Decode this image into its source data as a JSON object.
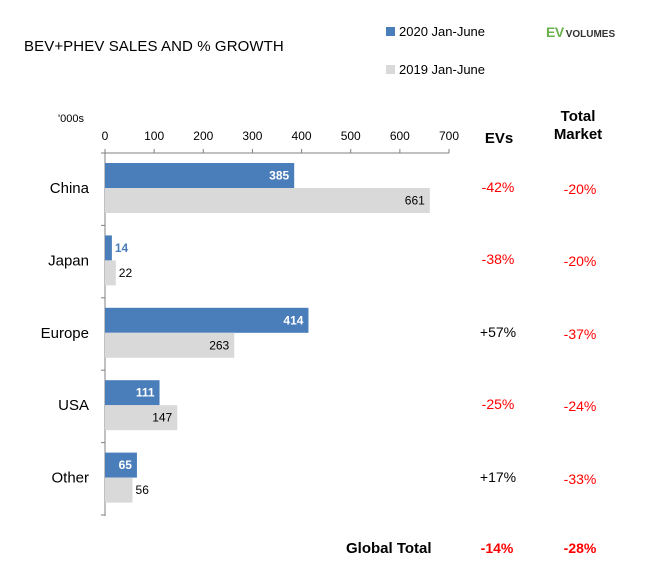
{
  "chart_data": {
    "type": "bar",
    "orientation": "horizontal",
    "title": "BEV+PHEV SALES AND % GROWTH",
    "unit_label": "'000s",
    "categories": [
      "China",
      "Japan",
      "Europe",
      "USA",
      "Other"
    ],
    "series": [
      {
        "name": "2020 Jan-June",
        "color": "#4a7ebb",
        "values": [
          385,
          14,
          414,
          111,
          65
        ]
      },
      {
        "name": "2019 Jan-June",
        "color": "#d9d9d9",
        "values": [
          661,
          22,
          263,
          147,
          56
        ]
      }
    ],
    "xlim": [
      0,
      700
    ],
    "xticks": [
      0,
      100,
      200,
      300,
      400,
      500,
      600,
      700
    ],
    "legend_position": "top-right",
    "grid": false
  },
  "logo": {
    "main": "EV",
    "sub": "VOLUMES"
  },
  "growth_table": {
    "headers": {
      "evs": "EVs",
      "total_line1": "Total",
      "total_line2": "Market"
    },
    "rows": [
      {
        "evs": "-42%",
        "total": "-20%",
        "evs_color": "#ff0000",
        "total_color": "#ff0000"
      },
      {
        "evs": "-38%",
        "total": "-20%",
        "evs_color": "#ff0000",
        "total_color": "#ff0000"
      },
      {
        "evs": "+57%",
        "total": "-37%",
        "evs_color": "#000000",
        "total_color": "#ff0000"
      },
      {
        "evs": "-25%",
        "total": "-24%",
        "evs_color": "#ff0000",
        "total_color": "#ff0000"
      },
      {
        "evs": "+17%",
        "total": "-33%",
        "evs_color": "#000000",
        "total_color": "#ff0000"
      }
    ],
    "global": {
      "label": "Global Total",
      "evs": "-14%",
      "total": "-28%",
      "color": "#ff0000"
    }
  }
}
